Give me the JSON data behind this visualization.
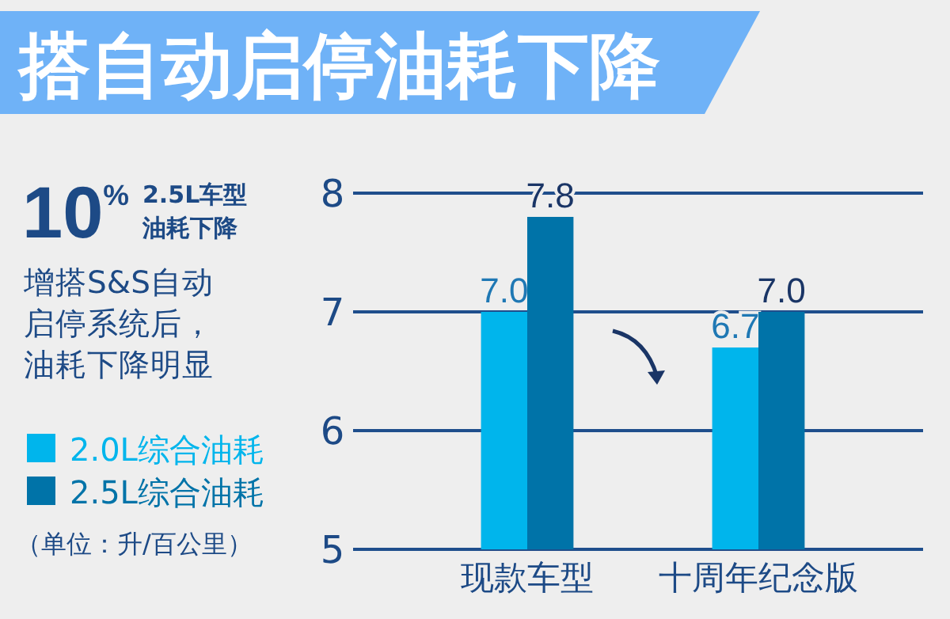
{
  "chart_data": {
    "type": "bar",
    "title": "搭自动启停油耗下降",
    "categories": [
      "现款车型",
      "十周年纪念版"
    ],
    "series": [
      {
        "name": "2.0L综合油耗",
        "color": "#00b5ec",
        "values": [
          7.0,
          6.7
        ],
        "value_labels": [
          "7.0",
          "6.7"
        ]
      },
      {
        "name": "2.5L综合油耗",
        "color": "#0073a8",
        "values": [
          7.8,
          7.0
        ],
        "value_labels": [
          "7.8",
          "7.0"
        ]
      }
    ],
    "ylim": [
      5,
      8
    ],
    "yticks": [
      5,
      6,
      7,
      8
    ],
    "grid": "y",
    "legend": "left",
    "annotations": [
      "10$^{%}$",
      "2.5L车型",
      "油耗下降",
      "增搭S&S自动启停系统后，油耗下降明显",
      "（单位：升/百公里）"
    ]
  }
}
